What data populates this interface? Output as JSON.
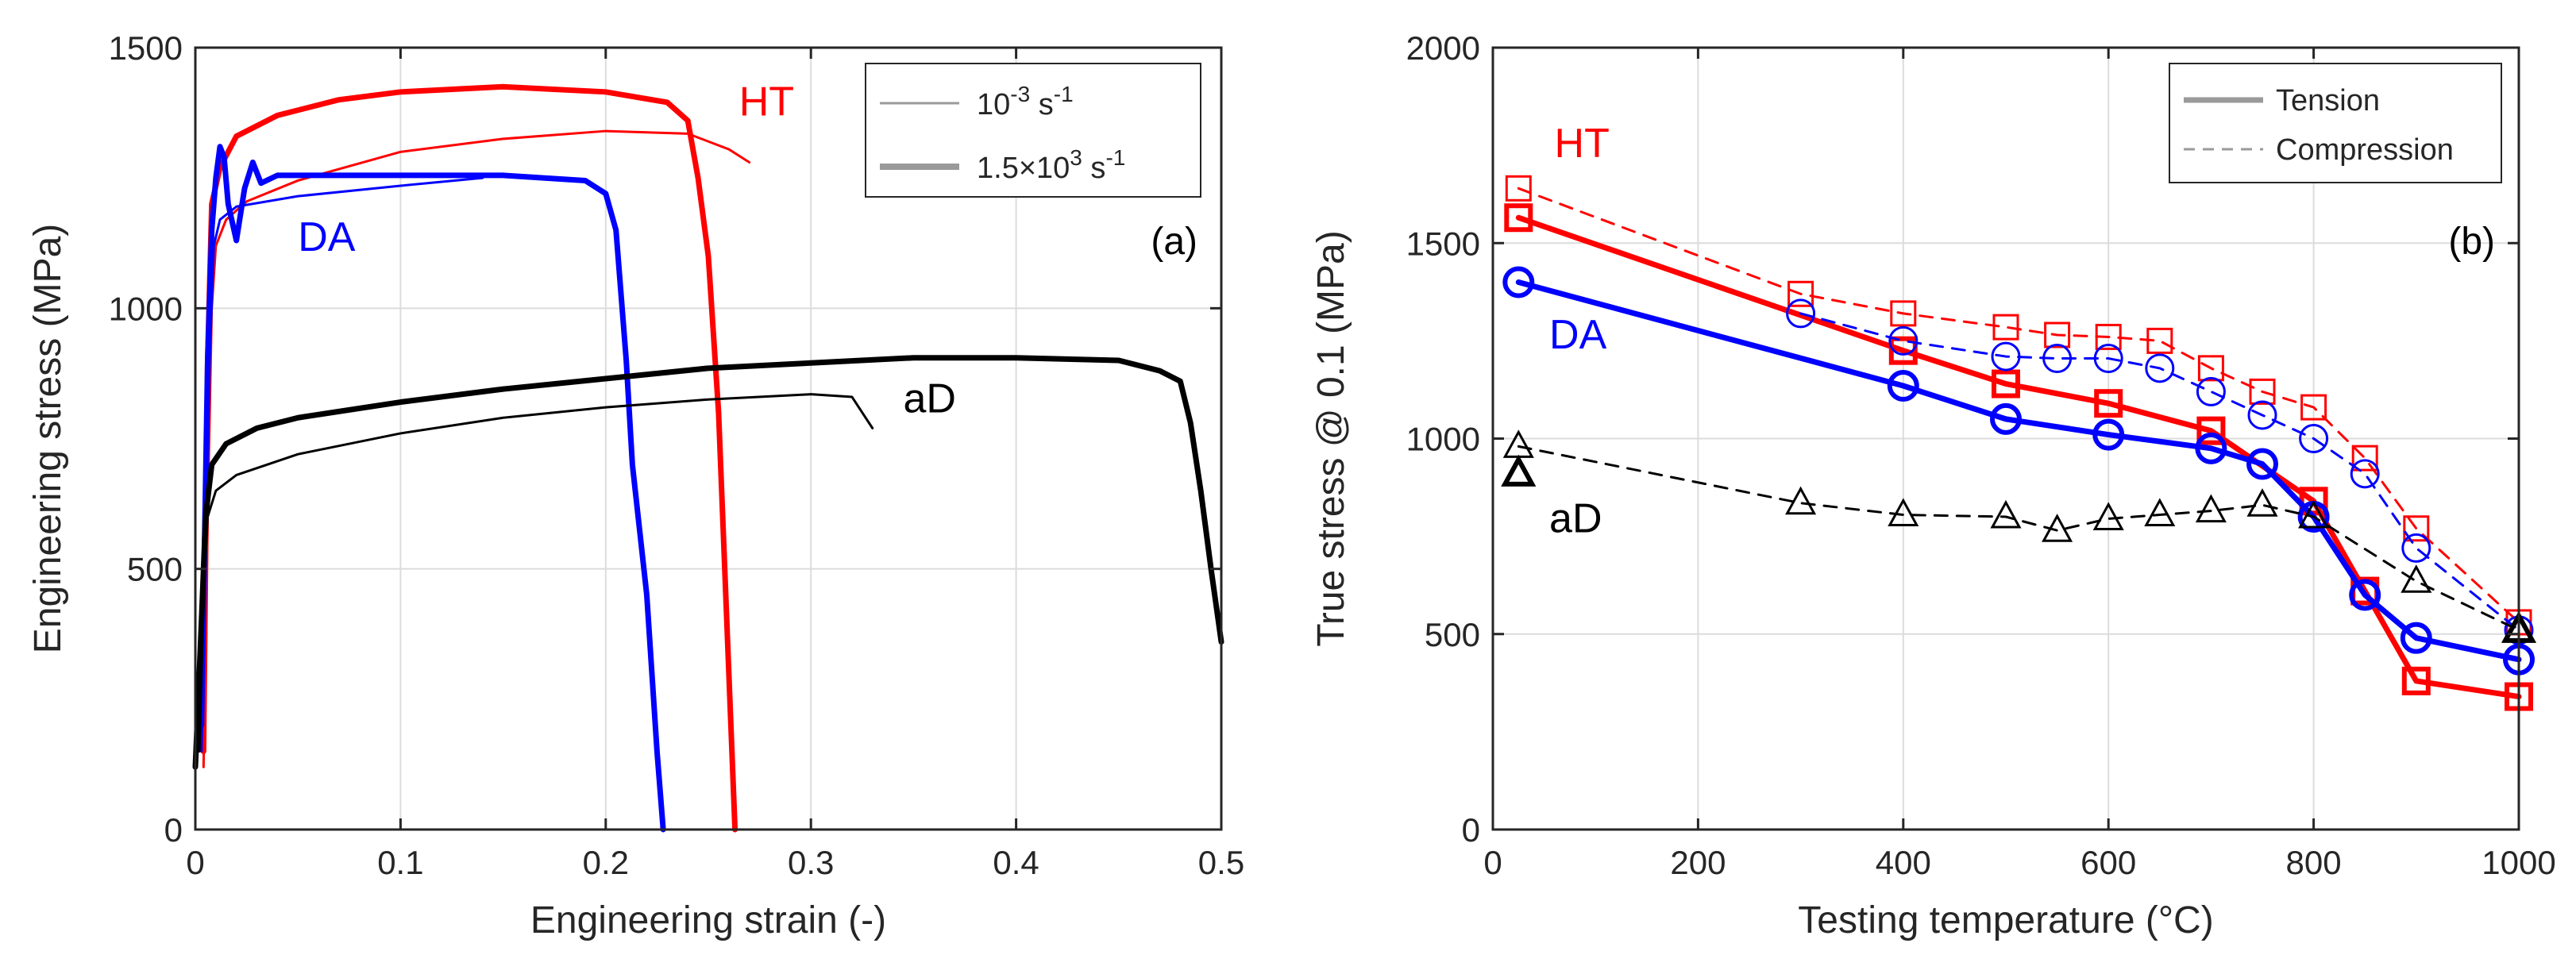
{
  "colors": {
    "red": "#ff0000",
    "blue": "#0000ff",
    "black": "#000000",
    "grid": "#dcdcdc",
    "axis": "#262626"
  },
  "chart_data": [
    {
      "type": "line",
      "panel_label": "(a)",
      "xlabel": "Engineering strain (-)",
      "ylabel": "Engineering stress (MPa)",
      "xlim": [
        0,
        0.5
      ],
      "ylim": [
        0,
        1500
      ],
      "xticks": [
        0,
        0.1,
        0.2,
        0.3,
        0.4,
        0.5
      ],
      "xtick_labels": [
        "0",
        "0.1",
        "0.2",
        "0.3",
        "0.4",
        "0.5"
      ],
      "yticks": [
        0,
        500,
        1000,
        1500
      ],
      "ytick_labels": [
        "0",
        "500",
        "1000",
        "1500"
      ],
      "grid": true,
      "legend_position": "top-right",
      "legend": [
        {
          "base": "10",
          "exp": "-3",
          "unit": " s",
          "unit_exp": "-1",
          "width": "thin"
        },
        {
          "base": "1.5×10",
          "exp": "3",
          "unit": " s",
          "unit_exp": "-1",
          "width": "thick"
        }
      ],
      "labels": [
        {
          "text": "HT",
          "color": "red",
          "x": 0.265,
          "y": 1370
        },
        {
          "text": "DA",
          "color": "blue",
          "x": 0.05,
          "y": 1110
        },
        {
          "text": "aD",
          "color": "black",
          "x": 0.345,
          "y": 800
        }
      ],
      "series": [
        {
          "group": "HT",
          "rate": "10^-3 s^-1",
          "color": "red",
          "width": "thin",
          "points": [
            [
              0.004,
              120
            ],
            [
              0.006,
              600
            ],
            [
              0.008,
              1000
            ],
            [
              0.01,
              1120
            ],
            [
              0.015,
              1170
            ],
            [
              0.025,
              1205
            ],
            [
              0.05,
              1245
            ],
            [
              0.1,
              1300
            ],
            [
              0.15,
              1325
            ],
            [
              0.2,
              1340
            ],
            [
              0.24,
              1335
            ],
            [
              0.26,
              1305
            ],
            [
              0.27,
              1280
            ]
          ]
        },
        {
          "group": "HT",
          "rate": "1.5×10^3 s^-1",
          "color": "red",
          "width": "thick",
          "points": [
            [
              0.004,
              150
            ],
            [
              0.006,
              900
            ],
            [
              0.008,
              1200
            ],
            [
              0.012,
              1270
            ],
            [
              0.02,
              1330
            ],
            [
              0.04,
              1370
            ],
            [
              0.07,
              1400
            ],
            [
              0.1,
              1415
            ],
            [
              0.15,
              1425
            ],
            [
              0.2,
              1415
            ],
            [
              0.23,
              1395
            ],
            [
              0.24,
              1360
            ],
            [
              0.245,
              1250
            ],
            [
              0.25,
              1100
            ],
            [
              0.255,
              800
            ],
            [
              0.26,
              300
            ],
            [
              0.263,
              0
            ]
          ]
        },
        {
          "group": "DA",
          "rate": "10^-3 s^-1",
          "color": "blue",
          "width": "thin",
          "points": [
            [
              0.003,
              150
            ],
            [
              0.005,
              500
            ],
            [
              0.007,
              900
            ],
            [
              0.009,
              1120
            ],
            [
              0.012,
              1170
            ],
            [
              0.02,
              1195
            ],
            [
              0.05,
              1215
            ],
            [
              0.1,
              1235
            ],
            [
              0.14,
              1250
            ]
          ]
        },
        {
          "group": "DA",
          "rate": "1.5×10^3 s^-1",
          "color": "blue",
          "width": "thick",
          "points": [
            [
              0.003,
              200
            ],
            [
              0.006,
              900
            ],
            [
              0.008,
              1150
            ],
            [
              0.01,
              1250
            ],
            [
              0.012,
              1310
            ],
            [
              0.014,
              1290
            ],
            [
              0.016,
              1200
            ],
            [
              0.02,
              1130
            ],
            [
              0.024,
              1230
            ],
            [
              0.028,
              1280
            ],
            [
              0.032,
              1240
            ],
            [
              0.04,
              1255
            ],
            [
              0.08,
              1255
            ],
            [
              0.15,
              1255
            ],
            [
              0.19,
              1245
            ],
            [
              0.2,
              1220
            ],
            [
              0.205,
              1150
            ],
            [
              0.21,
              900
            ],
            [
              0.213,
              700
            ],
            [
              0.22,
              450
            ],
            [
              0.225,
              150
            ],
            [
              0.228,
              0
            ]
          ]
        },
        {
          "group": "aD",
          "rate": "10^-3 s^-1",
          "color": "black",
          "width": "thin",
          "points": [
            [
              0.002,
              150
            ],
            [
              0.004,
              450
            ],
            [
              0.006,
              600
            ],
            [
              0.01,
              650
            ],
            [
              0.02,
              680
            ],
            [
              0.05,
              720
            ],
            [
              0.1,
              760
            ],
            [
              0.15,
              790
            ],
            [
              0.2,
              810
            ],
            [
              0.25,
              825
            ],
            [
              0.3,
              835
            ],
            [
              0.32,
              830
            ],
            [
              0.325,
              800
            ],
            [
              0.33,
              770
            ]
          ]
        },
        {
          "group": "aD",
          "rate": "1.5×10^3 s^-1",
          "color": "black",
          "width": "thick",
          "points": [
            [
              0,
              120
            ],
            [
              0.003,
              400
            ],
            [
              0.005,
              600
            ],
            [
              0.008,
              700
            ],
            [
              0.015,
              740
            ],
            [
              0.03,
              770
            ],
            [
              0.05,
              790
            ],
            [
              0.1,
              820
            ],
            [
              0.15,
              845
            ],
            [
              0.2,
              865
            ],
            [
              0.25,
              885
            ],
            [
              0.3,
              895
            ],
            [
              0.35,
              905
            ],
            [
              0.4,
              905
            ],
            [
              0.45,
              900
            ],
            [
              0.47,
              880
            ],
            [
              0.48,
              860
            ],
            [
              0.485,
              780
            ],
            [
              0.49,
              650
            ],
            [
              0.495,
              500
            ],
            [
              0.5,
              360
            ]
          ]
        }
      ]
    },
    {
      "type": "line",
      "panel_label": "(b)",
      "xlabel": "Testing temperature (°C)",
      "ylabel": "True stress @ 0.1 (MPa)",
      "xlim": [
        0,
        1000
      ],
      "ylim": [
        0,
        2000
      ],
      "xticks": [
        0,
        200,
        400,
        600,
        800,
        1000
      ],
      "xtick_labels": [
        "0",
        "200",
        "400",
        "600",
        "800",
        "1000"
      ],
      "yticks": [
        0,
        500,
        1000,
        1500,
        2000
      ],
      "ytick_labels": [
        "0",
        "500",
        "1000",
        "1500",
        "2000"
      ],
      "grid": true,
      "legend_position": "top-right",
      "legend": [
        {
          "label": "Tension",
          "style": "solid"
        },
        {
          "label": "Compression",
          "style": "dashed"
        }
      ],
      "labels": [
        {
          "text": "HT",
          "color": "red",
          "x": 60,
          "y": 1720
        },
        {
          "text": "DA",
          "color": "blue",
          "x": 55,
          "y": 1230
        },
        {
          "text": "aD",
          "color": "black",
          "x": 55,
          "y": 760
        }
      ],
      "series": [
        {
          "group": "HT",
          "mode": "Tension",
          "color": "red",
          "style": "solid",
          "marker": "square",
          "x": [
            25,
            400,
            500,
            600,
            700,
            800,
            850,
            900,
            1000
          ],
          "y": [
            1565,
            1225,
            1140,
            1090,
            1020,
            840,
            610,
            380,
            340
          ]
        },
        {
          "group": "HT",
          "mode": "Compression",
          "color": "red",
          "style": "dashed",
          "marker": "square",
          "x": [
            25,
            300,
            400,
            500,
            550,
            600,
            650,
            700,
            750,
            800,
            850,
            900,
            1000
          ],
          "y": [
            1640,
            1370,
            1320,
            1285,
            1265,
            1260,
            1250,
            1180,
            1120,
            1080,
            950,
            770,
            530
          ]
        },
        {
          "group": "DA",
          "mode": "Tension",
          "color": "blue",
          "style": "solid",
          "marker": "circle",
          "x": [
            25,
            400,
            500,
            600,
            700,
            750,
            800,
            850,
            900,
            1000
          ],
          "y": [
            1400,
            1135,
            1050,
            1010,
            975,
            935,
            800,
            600,
            490,
            435
          ]
        },
        {
          "group": "DA",
          "mode": "Compression",
          "color": "blue",
          "style": "dashed",
          "marker": "circle",
          "x": [
            300,
            400,
            500,
            550,
            600,
            650,
            700,
            750,
            800,
            850,
            900,
            1000
          ],
          "y": [
            1320,
            1250,
            1210,
            1205,
            1205,
            1180,
            1120,
            1060,
            1000,
            910,
            720,
            510
          ]
        },
        {
          "group": "aD",
          "mode": "Tension",
          "color": "black",
          "style": "solid",
          "marker": "triangle",
          "x": [
            25,
            1000
          ],
          "y": [
            910,
            510
          ],
          "markers_only": true
        },
        {
          "group": "aD",
          "mode": "Compression",
          "color": "black",
          "style": "dashed",
          "marker": "triangle",
          "x": [
            25,
            300,
            400,
            500,
            550,
            600,
            650,
            700,
            750,
            800,
            900,
            1000
          ],
          "y": [
            980,
            835,
            805,
            800,
            765,
            795,
            805,
            815,
            830,
            800,
            635,
            510
          ]
        }
      ]
    }
  ]
}
